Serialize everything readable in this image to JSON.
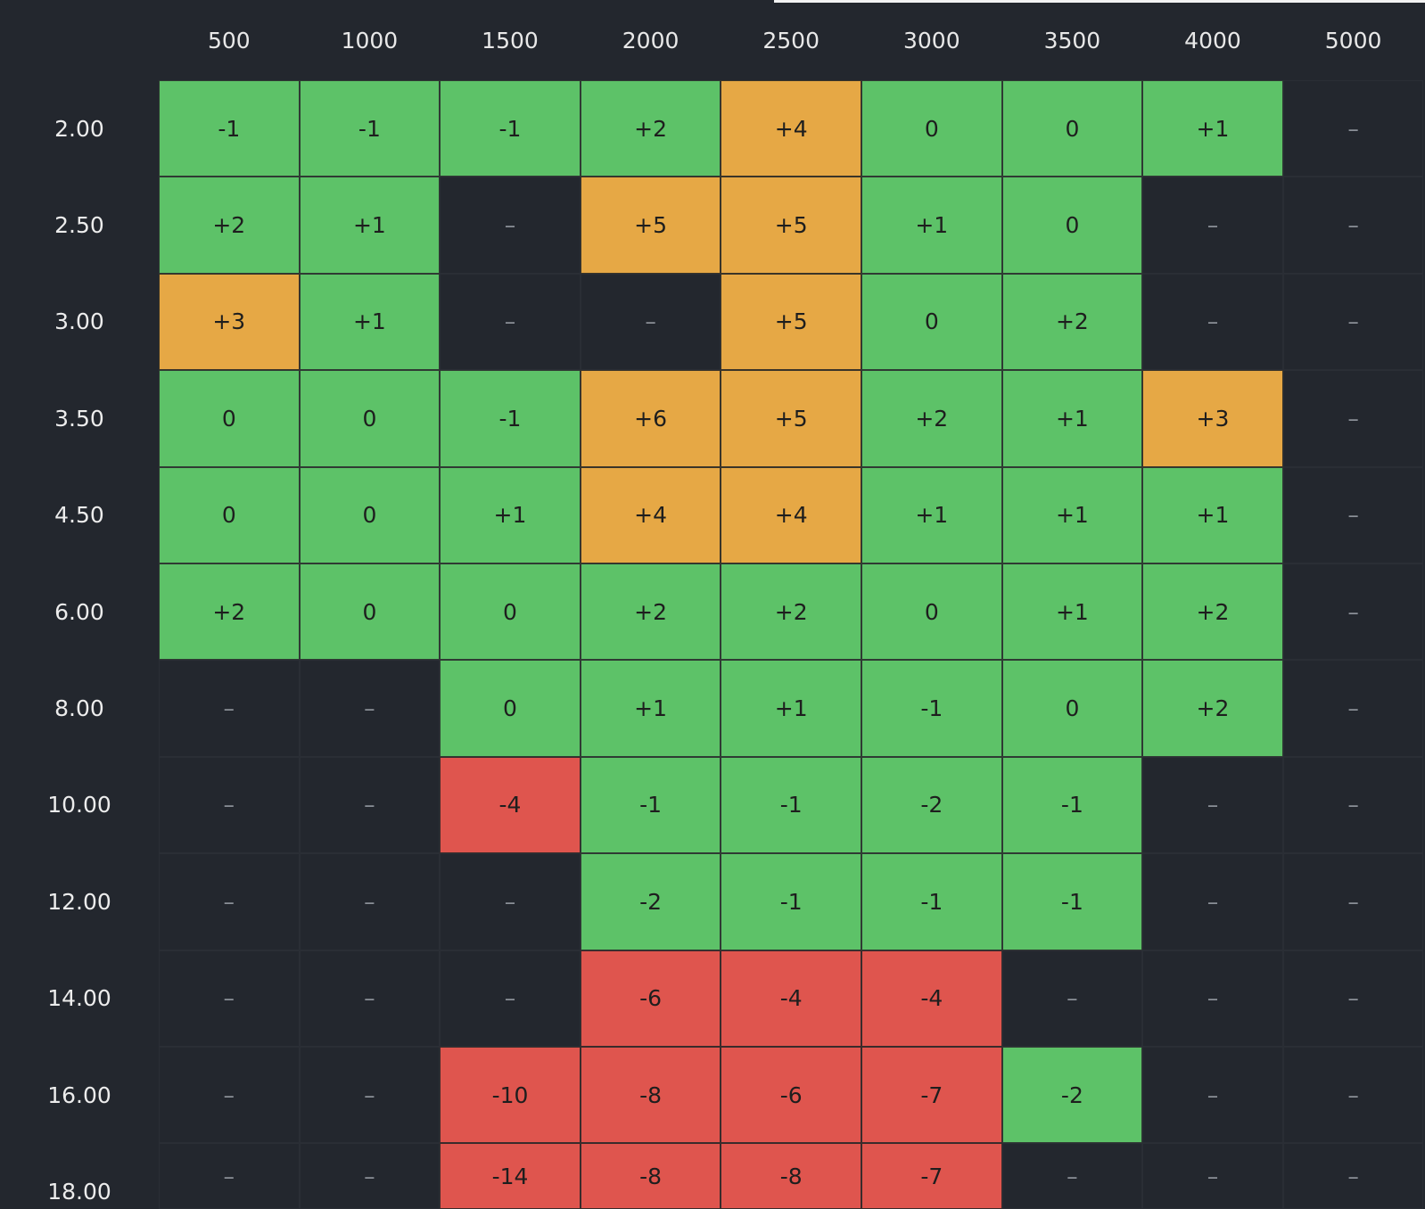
{
  "table": {
    "columns": [
      "500",
      "1000",
      "1500",
      "2000",
      "2500",
      "3000",
      "3500",
      "4000",
      "5000"
    ],
    "rows": [
      {
        "label": "2.00",
        "cells": [
          "-1",
          "-1",
          "-1",
          "+2",
          "+4",
          "0",
          "0",
          "+1",
          "–"
        ]
      },
      {
        "label": "2.50",
        "cells": [
          "+2",
          "+1",
          "–",
          "+5",
          "+5",
          "+1",
          "0",
          "–",
          "–"
        ]
      },
      {
        "label": "3.00",
        "cells": [
          "+3",
          "+1",
          "–",
          "–",
          "+5",
          "0",
          "+2",
          "–",
          "–"
        ]
      },
      {
        "label": "3.50",
        "cells": [
          "0",
          "0",
          "-1",
          "+6",
          "+5",
          "+2",
          "+1",
          "+3",
          "–"
        ]
      },
      {
        "label": "4.50",
        "cells": [
          "0",
          "0",
          "+1",
          "+4",
          "+4",
          "+1",
          "+1",
          "+1",
          "–"
        ]
      },
      {
        "label": "6.00",
        "cells": [
          "+2",
          "0",
          "0",
          "+2",
          "+2",
          "0",
          "+1",
          "+2",
          "–"
        ]
      },
      {
        "label": "8.00",
        "cells": [
          "–",
          "–",
          "0",
          "+1",
          "+1",
          "-1",
          "0",
          "+2",
          "–"
        ]
      },
      {
        "label": "10.00",
        "cells": [
          "–",
          "–",
          "-4",
          "-1",
          "-1",
          "-2",
          "-1",
          "–",
          "–"
        ]
      },
      {
        "label": "12.00",
        "cells": [
          "–",
          "–",
          "–",
          "-2",
          "-1",
          "-1",
          "-1",
          "–",
          "–"
        ]
      },
      {
        "label": "14.00",
        "cells": [
          "–",
          "–",
          "–",
          "-6",
          "-4",
          "-4",
          "–",
          "–",
          "–"
        ]
      },
      {
        "label": "16.00",
        "cells": [
          "–",
          "–",
          "-10",
          "-8",
          "-6",
          "-7",
          "-2",
          "–",
          "–"
        ]
      },
      {
        "label": "18.00",
        "cells": [
          "–",
          "–",
          "-14",
          "-8",
          "-8",
          "-7",
          "–",
          "–",
          "–"
        ]
      }
    ]
  },
  "colors": {
    "background": "#23272e",
    "green": "#5dc268",
    "orange": "#e6a845",
    "red": "#df554e"
  }
}
